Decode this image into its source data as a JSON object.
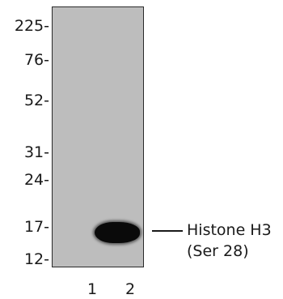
{
  "markers": [
    {
      "label": "225-"
    },
    {
      "label": "76-"
    },
    {
      "label": "52-"
    },
    {
      "label": "31-"
    },
    {
      "label": "24-"
    },
    {
      "label": "17-"
    },
    {
      "label": "12-"
    }
  ],
  "lanes": [
    "1",
    "2"
  ],
  "annotation": {
    "line1": "Histone H3",
    "line2": "(Ser 28)"
  },
  "colors": {
    "membrane": "#bdbdbd",
    "band": "#0a0a0a",
    "text": "#1a1a1a"
  }
}
